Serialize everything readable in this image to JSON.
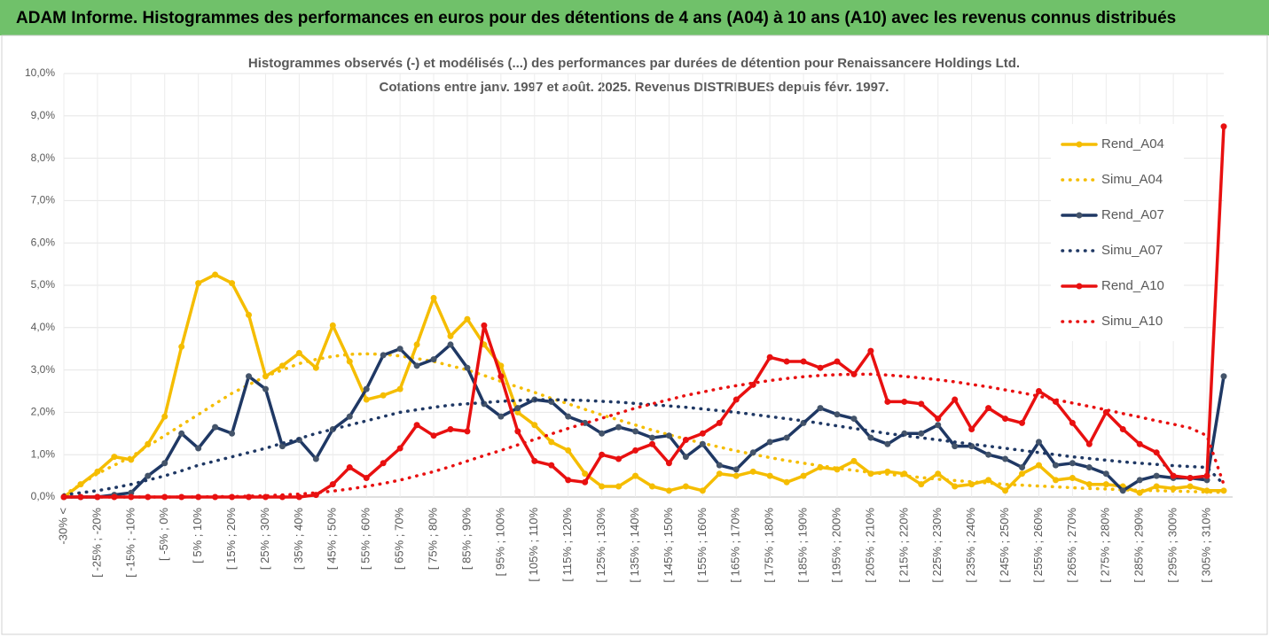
{
  "header": {
    "title": "ADAM Informe. Histogrammes des performances en euros pour des détentions de 4 ans (A04) à 10 ans (A10) avec les revenus connus distribués"
  },
  "chart_data": {
    "type": "line",
    "title": [
      "Histogrammes observés (-) et modélisés (...) des performances par durées de détention pour Renaissancere Holdings Ltd.",
      "Cotations entre janv. 1997 et août. 2025. Revenus DISTRIBUES depuis févr. 1997."
    ],
    "categories": [
      "-30% <",
      null,
      "[ -25% ; -20%",
      null,
      "[ -15% ; -10%",
      null,
      "[ -5% ; 0%",
      null,
      "[ 5% ; 10%",
      null,
      "[ 15% ; 20%",
      null,
      "[ 25% ; 30%",
      null,
      "[ 35% ; 40%",
      null,
      "[ 45% ; 50%",
      null,
      "[ 55% ; 60%",
      null,
      "[ 65% ; 70%",
      null,
      "[ 75% ; 80%",
      null,
      "[ 85% ; 90%",
      null,
      "[ 95% ; 100%",
      null,
      "[ 105% ; 110%",
      null,
      "[ 115% ; 120%",
      null,
      "[ 125% ; 130%",
      null,
      "[ 135% ; 140%",
      null,
      "[ 145% ; 150%",
      null,
      "[ 155% ; 160%",
      null,
      "[ 165% ; 170%",
      null,
      "[ 175% ; 180%",
      null,
      "[ 185% ; 190%",
      null,
      "[ 195% ; 200%",
      null,
      "[ 205% ; 210%",
      null,
      "[ 215% ; 220%",
      null,
      "[ 225% ; 230%",
      null,
      "[ 235% ; 240%",
      null,
      "[ 245% ; 250%",
      null,
      "[ 255% ; 260%",
      null,
      "[ 265% ; 270%",
      null,
      "[ 275% ; 280%",
      null,
      "[ 285% ; 290%",
      null,
      "[ 295% ; 300%",
      null,
      "[ 305% ; 310%",
      null
    ],
    "series": [
      {
        "name": "Rend_A04",
        "color": "#f5bd00",
        "style": "solid",
        "values": [
          0,
          0.3,
          0.6,
          0.95,
          0.88,
          1.25,
          1.9,
          3.55,
          5.05,
          5.25,
          5.05,
          4.3,
          2.85,
          3.1,
          3.4,
          3.05,
          4.05,
          3.2,
          2.3,
          2.4,
          2.55,
          3.6,
          4.7,
          3.8,
          4.2,
          3.6,
          3.1,
          2.0,
          1.7,
          1.3,
          1.1,
          0.55,
          0.25,
          0.25,
          0.5,
          0.25,
          0.15,
          0.25,
          0.15,
          0.55,
          0.5,
          0.6,
          0.5,
          0.35,
          0.5,
          0.7,
          0.65,
          0.85,
          0.55,
          0.6,
          0.55,
          0.3,
          0.55,
          0.25,
          0.3,
          0.4,
          0.15,
          0.55,
          0.75,
          0.4,
          0.45,
          0.3,
          0.3,
          0.25,
          0.1,
          0.25,
          0.2,
          0.25,
          0.15,
          0.15
        ]
      },
      {
        "name": "Simu_A04",
        "color": "#f5bd00",
        "style": "dotted",
        "values": [
          0.05,
          0.3,
          0.55,
          0.75,
          0.95,
          1.2,
          1.45,
          1.7,
          1.95,
          2.2,
          2.45,
          2.65,
          2.85,
          3.0,
          3.15,
          3.25,
          3.32,
          3.37,
          3.38,
          3.37,
          3.33,
          3.27,
          3.2,
          3.1,
          3.0,
          2.87,
          2.73,
          2.6,
          2.47,
          2.33,
          2.2,
          2.07,
          1.94,
          1.82,
          1.7,
          1.58,
          1.47,
          1.37,
          1.27,
          1.18,
          1.09,
          1.01,
          0.93,
          0.86,
          0.8,
          0.74,
          0.68,
          0.63,
          0.58,
          0.54,
          0.5,
          0.46,
          0.42,
          0.39,
          0.36,
          0.33,
          0.3,
          0.28,
          0.26,
          0.24,
          0.22,
          0.2,
          0.19,
          0.17,
          0.16,
          0.15,
          0.14,
          0.13,
          0.12,
          0.11
        ]
      },
      {
        "name": "Rend_A07",
        "color": "#1f3864",
        "style": "solid",
        "values": [
          0,
          0,
          0,
          0.05,
          0.1,
          0.5,
          0.8,
          1.5,
          1.15,
          1.65,
          1.5,
          2.85,
          2.55,
          1.2,
          1.35,
          0.9,
          1.6,
          1.9,
          2.55,
          3.35,
          3.5,
          3.1,
          3.25,
          3.6,
          3.05,
          2.2,
          1.9,
          2.1,
          2.3,
          2.25,
          1.9,
          1.75,
          1.5,
          1.65,
          1.55,
          1.4,
          1.45,
          0.95,
          1.25,
          0.75,
          0.65,
          1.05,
          1.3,
          1.4,
          1.75,
          2.1,
          1.95,
          1.85,
          1.4,
          1.25,
          1.5,
          1.5,
          1.7,
          1.2,
          1.2,
          1.0,
          0.9,
          0.7,
          1.3,
          0.75,
          0.8,
          0.7,
          0.55,
          0.15,
          0.4,
          0.5,
          0.45,
          0.45,
          0.4,
          2.85
        ]
      },
      {
        "name": "Simu_A07",
        "color": "#1f3864",
        "style": "dotted",
        "values": [
          0.05,
          0.1,
          0.15,
          0.22,
          0.3,
          0.4,
          0.5,
          0.62,
          0.75,
          0.85,
          0.95,
          1.05,
          1.15,
          1.27,
          1.38,
          1.5,
          1.6,
          1.7,
          1.8,
          1.9,
          2.0,
          2.06,
          2.12,
          2.17,
          2.2,
          2.23,
          2.26,
          2.28,
          2.3,
          2.3,
          2.29,
          2.28,
          2.26,
          2.24,
          2.21,
          2.18,
          2.15,
          2.12,
          2.08,
          2.04,
          2.0,
          1.95,
          1.9,
          1.85,
          1.8,
          1.74,
          1.68,
          1.62,
          1.56,
          1.5,
          1.45,
          1.4,
          1.35,
          1.3,
          1.25,
          1.2,
          1.15,
          1.1,
          1.05,
          1.0,
          0.95,
          0.91,
          0.87,
          0.83,
          0.8,
          0.77,
          0.74,
          0.72,
          0.7,
          0.3
        ]
      },
      {
        "name": "Rend_A10",
        "color": "#e81010",
        "style": "solid",
        "values": [
          0,
          0,
          0,
          0,
          0,
          0,
          0,
          0,
          0,
          0,
          0,
          0,
          0,
          0,
          0,
          0.05,
          0.3,
          0.7,
          0.45,
          0.8,
          1.15,
          1.7,
          1.45,
          1.6,
          1.55,
          4.05,
          2.85,
          1.55,
          0.85,
          0.75,
          0.4,
          0.35,
          1.0,
          0.9,
          1.1,
          1.25,
          0.8,
          1.35,
          1.5,
          1.75,
          2.3,
          2.65,
          3.3,
          3.2,
          3.2,
          3.05,
          3.2,
          2.9,
          3.45,
          2.25,
          2.25,
          2.2,
          1.85,
          2.3,
          1.6,
          2.1,
          1.85,
          1.75,
          2.5,
          2.25,
          1.75,
          1.25,
          2.0,
          1.6,
          1.25,
          1.05,
          0.5,
          0.45,
          0.5,
          8.75
        ]
      },
      {
        "name": "Simu_A10",
        "color": "#e81010",
        "style": "dotted",
        "values": [
          0,
          0,
          0,
          0,
          0,
          0,
          0,
          0,
          0,
          0.01,
          0.01,
          0.02,
          0.03,
          0.05,
          0.07,
          0.1,
          0.14,
          0.19,
          0.25,
          0.32,
          0.4,
          0.5,
          0.6,
          0.72,
          0.85,
          0.98,
          1.1,
          1.23,
          1.36,
          1.49,
          1.62,
          1.74,
          1.86,
          1.98,
          2.1,
          2.2,
          2.3,
          2.4,
          2.48,
          2.56,
          2.63,
          2.69,
          2.75,
          2.8,
          2.84,
          2.87,
          2.89,
          2.9,
          2.9,
          2.88,
          2.85,
          2.81,
          2.77,
          2.72,
          2.66,
          2.6,
          2.53,
          2.46,
          2.38,
          2.3,
          2.22,
          2.14,
          2.06,
          1.97,
          1.89,
          1.8,
          1.72,
          1.63,
          1.45,
          0.3
        ]
      }
    ],
    "ylim": [
      0,
      10
    ],
    "yticks": [
      {
        "value": 0,
        "label": "0,0%"
      },
      {
        "value": 1,
        "label": "1,0%"
      },
      {
        "value": 2,
        "label": "2,0%"
      },
      {
        "value": 3,
        "label": "3,0%"
      },
      {
        "value": 4,
        "label": "4,0%"
      },
      {
        "value": 5,
        "label": "5,0%"
      },
      {
        "value": 6,
        "label": "6,0%"
      },
      {
        "value": 7,
        "label": "7,0%"
      },
      {
        "value": 8,
        "label": "8,0%"
      },
      {
        "value": 9,
        "label": "9,0%"
      },
      {
        "value": 10,
        "label": "10,0%"
      }
    ],
    "grid": true,
    "legend": "right"
  }
}
